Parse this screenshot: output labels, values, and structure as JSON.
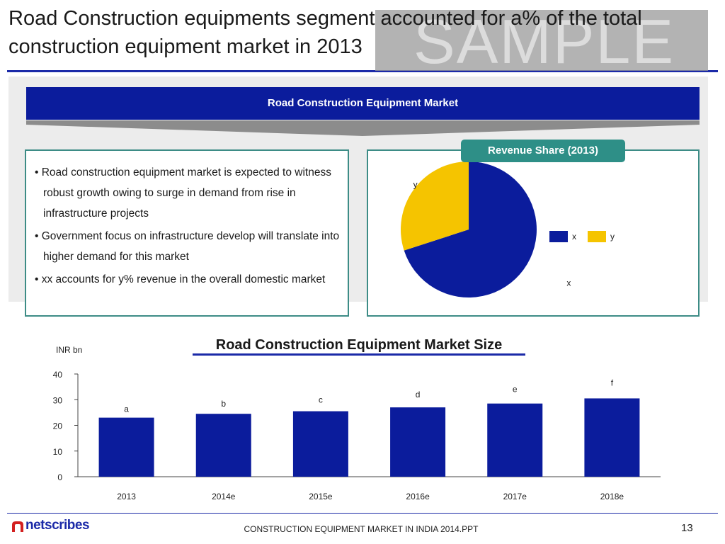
{
  "title": "Road Construction equipments segment accounted for a% of the total construction equipment market in 2013",
  "watermark": "SAMPLE",
  "banner": "Road Construction Equipment Market",
  "bullets": [
    "Road construction equipment market is expected to witness robust growth owing to surge in demand from rise in infrastructure projects",
    "Government focus on infrastructure develop will translate into higher demand for this market",
    "xx accounts for y% revenue in the overall domestic market"
  ],
  "colors": {
    "primary": "#0b1c9c",
    "accent": "#f5c400",
    "teal": "#2e8f87"
  },
  "chart_data": [
    {
      "type": "pie",
      "title": "Revenue Share (2013)",
      "slices": [
        {
          "name": "x",
          "value": 70,
          "color": "#0b1c9c",
          "label": "x"
        },
        {
          "name": "y",
          "value": 30,
          "color": "#f5c400",
          "label": "y"
        }
      ],
      "legend": "right"
    },
    {
      "type": "bar",
      "title": "Road Construction Equipment Market Size",
      "ylabel": "INR bn",
      "categories": [
        "2013",
        "2014e",
        "2015e",
        "2016e",
        "2017e",
        "2018e"
      ],
      "values": [
        23,
        24.5,
        25.5,
        27,
        28.5,
        30.5
      ],
      "data_labels": [
        "a",
        "b",
        "c",
        "d",
        "e",
        "f"
      ],
      "ylim": [
        0,
        40
      ],
      "yticks": [
        0,
        10,
        20,
        30,
        40
      ],
      "grid": false,
      "color": "#0b1c9c"
    }
  ],
  "footer": {
    "logo": "netscribes",
    "center": "CONSTRUCTION EQUIPMENT MARKET IN INDIA 2014.PPT",
    "page": "13"
  }
}
